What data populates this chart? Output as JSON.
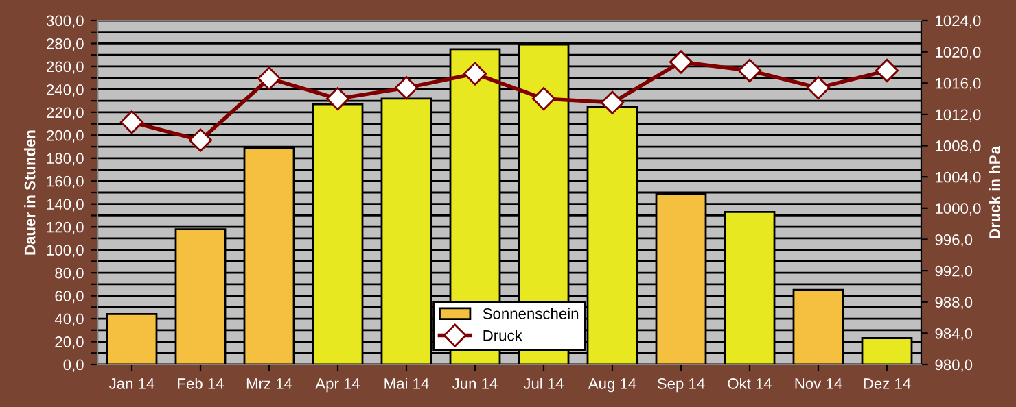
{
  "chart_data": {
    "type": "bar",
    "categories": [
      "Jan 14",
      "Feb 14",
      "Mrz 14",
      "Apr 14",
      "Mai 14",
      "Jun 14",
      "Jul 14",
      "Aug 14",
      "Sep 14",
      "Okt 14",
      "Nov 14",
      "Dez 14"
    ],
    "series": [
      {
        "name": "Sonnenschein",
        "colors": [
          "#f5c040",
          "#f5c040",
          "#f5c040",
          "#e8e820",
          "#e8e820",
          "#e8e820",
          "#e8e820",
          "#e8e820",
          "#f5c040",
          "#e8e820",
          "#f5c040",
          "#e8e820"
        ],
        "values": [
          44,
          118,
          189,
          227,
          232,
          275,
          279,
          225,
          149,
          133,
          65,
          23
        ]
      },
      {
        "name": "Druck",
        "type": "line",
        "axis": "y2",
        "color": "#800000",
        "values": [
          1011.0,
          1008.7,
          1016.6,
          1014.0,
          1015.4,
          1017.2,
          1014.0,
          1013.5,
          1018.7,
          1017.6,
          1015.4,
          1017.6
        ]
      }
    ],
    "ylabel": "Dauer in Stunden",
    "y2label": "Druck in hPa",
    "ylim": [
      0,
      300
    ],
    "yticks": [
      {
        "value": 0,
        "label": "0,0"
      },
      {
        "value": 10,
        "label": null
      },
      {
        "value": 20,
        "label": "20,0"
      },
      {
        "value": 30,
        "label": null
      },
      {
        "value": 40,
        "label": "40,0"
      },
      {
        "value": 50,
        "label": null
      },
      {
        "value": 60,
        "label": "60,0"
      },
      {
        "value": 70,
        "label": null
      },
      {
        "value": 80,
        "label": "80,0"
      },
      {
        "value": 90,
        "label": null
      },
      {
        "value": 100,
        "label": "100,0"
      },
      {
        "value": 110,
        "label": null
      },
      {
        "value": 120,
        "label": "120,0"
      },
      {
        "value": 130,
        "label": null
      },
      {
        "value": 140,
        "label": "140,0"
      },
      {
        "value": 150,
        "label": null
      },
      {
        "value": 160,
        "label": "160,0"
      },
      {
        "value": 170,
        "label": null
      },
      {
        "value": 180,
        "label": "180,0"
      },
      {
        "value": 190,
        "label": null
      },
      {
        "value": 200,
        "label": "200,0"
      },
      {
        "value": 210,
        "label": null
      },
      {
        "value": 220,
        "label": "220,0"
      },
      {
        "value": 230,
        "label": null
      },
      {
        "value": 240,
        "label": "240,0"
      },
      {
        "value": 250,
        "label": null
      },
      {
        "value": 260,
        "label": "260,0"
      },
      {
        "value": 270,
        "label": null
      },
      {
        "value": 280,
        "label": "280,0"
      },
      {
        "value": 290,
        "label": null
      },
      {
        "value": 300,
        "label": "300,0"
      }
    ],
    "y2lim": [
      980,
      1024
    ],
    "y2ticks": [
      {
        "value": 980,
        "label": "980,0"
      },
      {
        "value": 984,
        "label": "984,0"
      },
      {
        "value": 988,
        "label": "988,0"
      },
      {
        "value": 992,
        "label": "992,0"
      },
      {
        "value": 996,
        "label": "996,0"
      },
      {
        "value": 1000,
        "label": "1000,0"
      },
      {
        "value": 1004,
        "label": "1004,0"
      },
      {
        "value": 1008,
        "label": "1008,0"
      },
      {
        "value": 1012,
        "label": "1012,0"
      },
      {
        "value": 1016,
        "label": "1016,0"
      },
      {
        "value": 1020,
        "label": "1020,0"
      },
      {
        "value": 1024,
        "label": "1024,0"
      }
    ],
    "grid": "y",
    "legend": "bottom",
    "marker": "diamond",
    "line_style": "solid"
  }
}
